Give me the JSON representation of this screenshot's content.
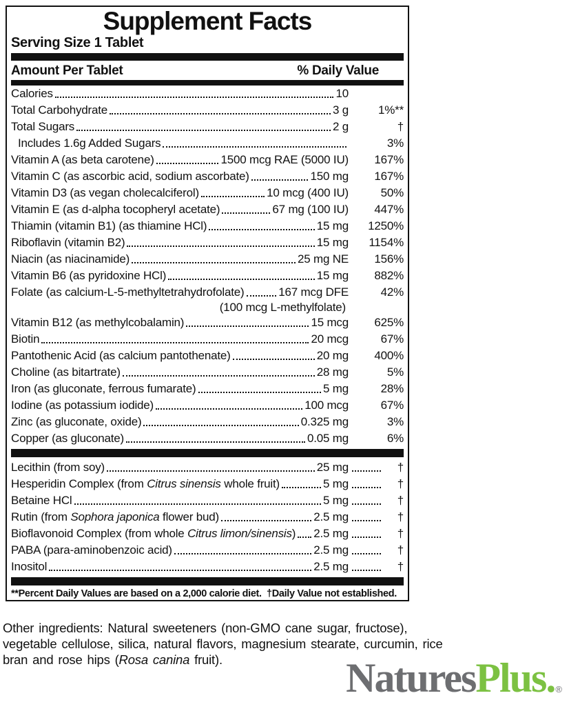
{
  "panel": {
    "title": "Supplement Facts",
    "serving": "Serving Size 1 Tablet",
    "col_left": "Amount Per Tablet",
    "col_right": "% Daily Value",
    "rows_main": [
      {
        "name": "Calories",
        "amount": "10",
        "dv": ""
      },
      {
        "name": "Total Carbohydrate",
        "amount": "3 g",
        "dv": "1%**"
      },
      {
        "name": "Total Sugars",
        "amount": "2 g",
        "dv": "†"
      },
      {
        "name": "Includes 1.6g Added Sugars",
        "amount": "",
        "dv": "3%",
        "indent": true
      },
      {
        "name": "Vitamin A (as beta carotene)",
        "amount": "1500 mcg RAE (5000 IU)",
        "dv": "167%"
      },
      {
        "name": "Vitamin C (as ascorbic acid, sodium ascorbate)",
        "amount": "150 mg",
        "dv": "167%"
      },
      {
        "name": "Vitamin D3 (as vegan cholecalciferol)",
        "amount": "10 mcg (400 IU)",
        "dv": "50%"
      },
      {
        "name": "Vitamin E (as d-alpha tocopheryl acetate)",
        "amount": "67 mg (100 IU)",
        "dv": "447%"
      },
      {
        "name": "Thiamin (vitamin B1) (as thiamine HCl)",
        "amount": "15 mg",
        "dv": "1250%"
      },
      {
        "name": "Riboflavin (vitamin B2)",
        "amount": "15 mg",
        "dv": "1154%"
      },
      {
        "name": "Niacin (as niacinamide)",
        "amount": "25 mg NE",
        "dv": "156%"
      },
      {
        "name": "Vitamin B6 (as pyridoxine HCl)",
        "amount": "15 mg",
        "dv": "882%"
      },
      {
        "name": "Folate (as calcium-L-5-methyltetrahydrofolate)",
        "amount": "167 mcg DFE",
        "dv": "42%",
        "subline": "(100 mcg L-methylfolate)"
      },
      {
        "name": "Vitamin B12 (as methylcobalamin)",
        "amount": "15 mcg",
        "dv": "625%"
      },
      {
        "name": "Biotin",
        "amount": "20 mcg",
        "dv": "67%"
      },
      {
        "name": "Pantothenic Acid (as calcium pantothenate)",
        "amount": "20 mg",
        "dv": "400%"
      },
      {
        "name": "Choline (as bitartrate)",
        "amount": "28 mg",
        "dv": "5%"
      },
      {
        "name": "Iron (as gluconate, ferrous fumarate)",
        "amount": "5 mg",
        "dv": "28%"
      },
      {
        "name": "Iodine (as potassium iodide)",
        "amount": "100 mcg",
        "dv": "67%"
      },
      {
        "name": "Zinc (as gluconate, oxide)",
        "amount": "0.325 mg",
        "dv": "3%"
      },
      {
        "name": "Copper (as gluconate)",
        "amount": "0.05 mg",
        "dv": "6%"
      }
    ],
    "rows_secondary": [
      {
        "name": "Lecithin (from soy)",
        "amount": "25 mg",
        "dv": "†"
      },
      {
        "name": "Hesperidin Complex (from <i>Citrus sinensis</i> whole fruit)",
        "amount": "5 mg",
        "dv": "†"
      },
      {
        "name": "Betaine HCl",
        "amount": "5 mg",
        "dv": "†"
      },
      {
        "name": "Rutin (from <i>Sophora japonica</i> flower bud)",
        "amount": "2.5 mg",
        "dv": "†"
      },
      {
        "name": "Bioflavonoid Complex (from whole <i>Citrus limon/sinensis</i>)",
        "amount": "2.5 mg",
        "dv": "†"
      },
      {
        "name": "PABA (para-aminobenzoic acid)",
        "amount": "2.5 mg",
        "dv": "†"
      },
      {
        "name": "Inositol",
        "amount": "2.5 mg",
        "dv": "†"
      }
    ],
    "footnote": "**Percent Daily Values are based on a 2,000 calorie diet.  †Daily Value not established."
  },
  "other_ingredients": "Other ingredients: Natural sweeteners (non-GMO cane sugar, fructose),\nvegetable cellulose, silica, natural flavors, magnesium stearate, curcumin, rice\nbran and rose hips (<i>Rosa canina</i> fruit).",
  "logo": {
    "part1": "Natures",
    "part2": "Plus.",
    "reg": "®",
    "gray_color": "#6d6e71",
    "green_color": "#7cc142"
  }
}
